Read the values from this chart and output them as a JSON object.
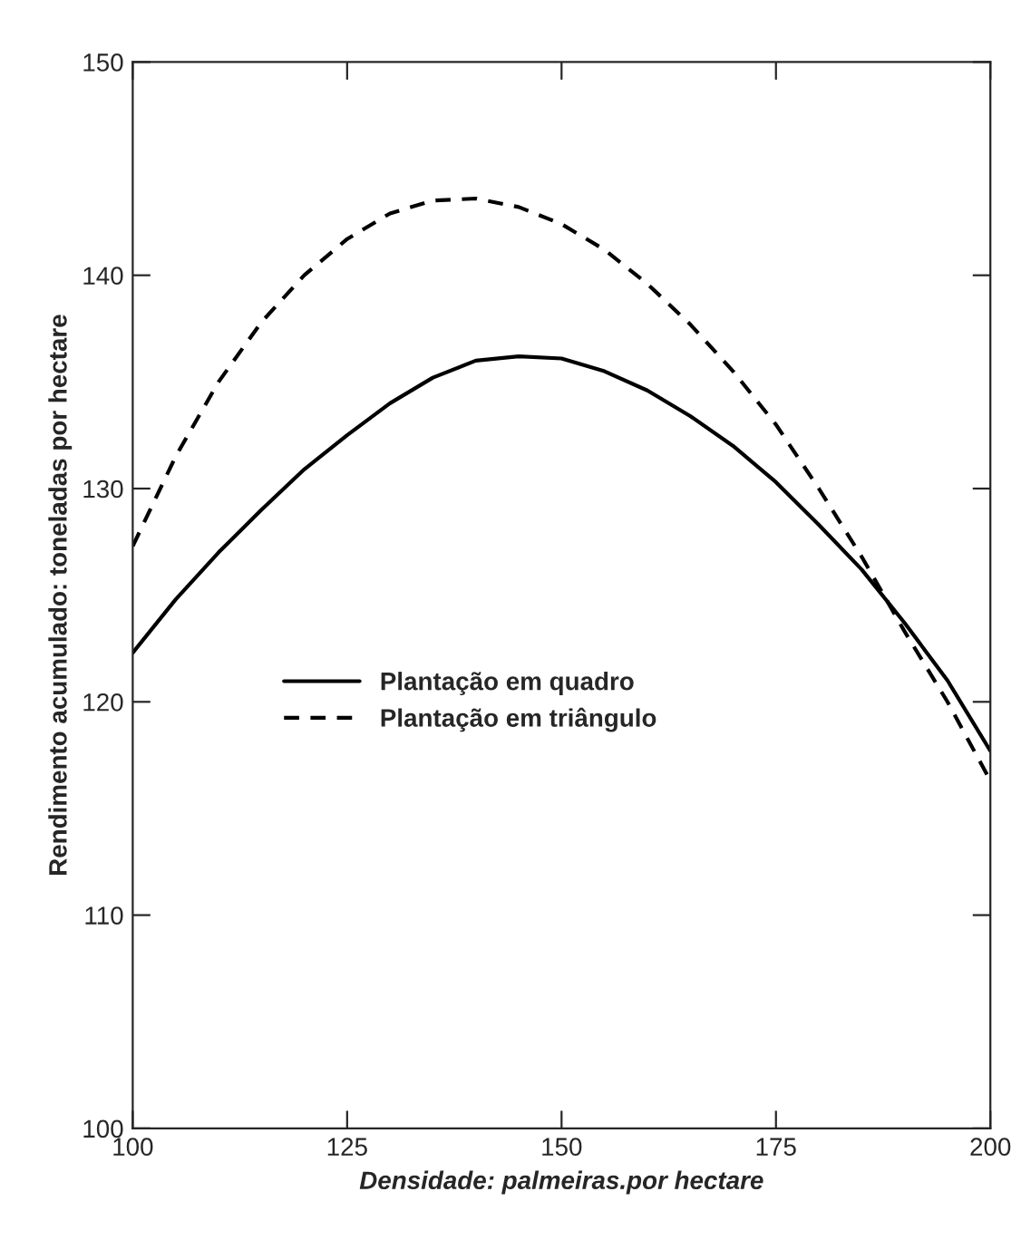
{
  "chart_data": {
    "type": "line",
    "xlabel": "Densidade: palmeiras.por hectare",
    "ylabel": "Rendimento acumulado: toneladas por hectare",
    "x": [
      100,
      105,
      110,
      115,
      120,
      125,
      130,
      135,
      140,
      145,
      150,
      155,
      160,
      165,
      170,
      175,
      180,
      185,
      190,
      195,
      200
    ],
    "series": [
      {
        "name": "Plantação em quadro",
        "color": "#000000",
        "line_style": "solid",
        "values": [
          122.3,
          124.8,
          127.0,
          129.0,
          130.9,
          132.5,
          134.0,
          135.2,
          136.0,
          136.2,
          136.1,
          135.5,
          134.6,
          133.4,
          132.0,
          130.3,
          128.3,
          126.2,
          123.7,
          121.0,
          117.7
        ]
      },
      {
        "name": "Plantação em triângulo",
        "color": "#000000",
        "line_style": "dashed",
        "values": [
          127.3,
          131.5,
          135.0,
          137.8,
          140.0,
          141.7,
          142.9,
          143.5,
          143.6,
          143.2,
          142.4,
          141.2,
          139.6,
          137.7,
          135.5,
          133.0,
          130.0,
          126.8,
          123.3,
          120.0,
          116.3
        ]
      }
    ],
    "xlim": [
      100,
      200
    ],
    "xticks": [
      100,
      125,
      150,
      175,
      200
    ],
    "ylim": [
      100,
      150
    ],
    "yticks": [
      100,
      110,
      120,
      130,
      140,
      150
    ],
    "grid": false,
    "legend": "center left"
  }
}
